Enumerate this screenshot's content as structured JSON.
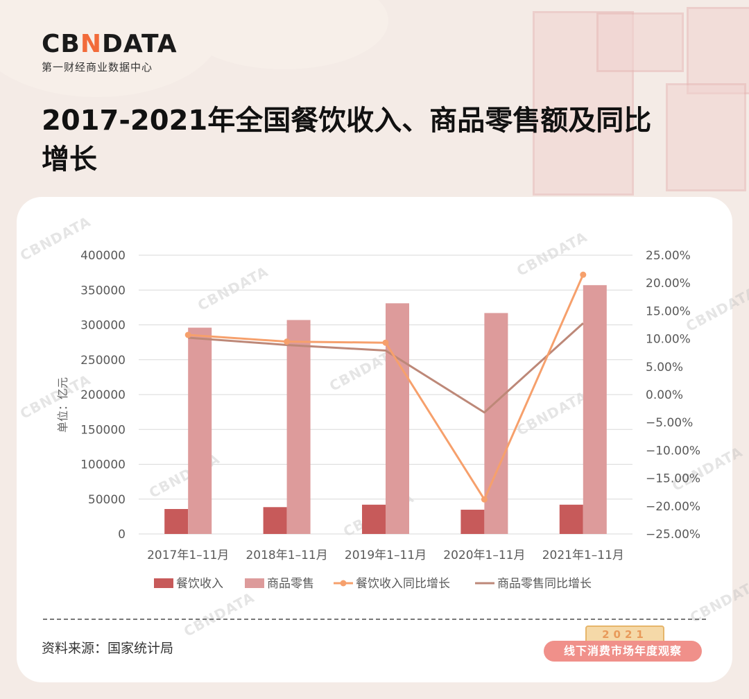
{
  "brand": {
    "logo_prefix": "CB",
    "logo_n": "N",
    "logo_suffix": "DATA",
    "subtitle": "第一财经商业数据中心"
  },
  "title": "2017-2021年全国餐饮收入、商品零售额及同比增长",
  "source": "资料来源：国家统计局",
  "stamp": {
    "year": "2021",
    "label": "线下消费市场年度观察"
  },
  "watermark_text": "CBNDATA",
  "chart_data": {
    "type": "bar",
    "categories": [
      "2017年1–11月",
      "2018年1–11月",
      "2019年1–11月",
      "2020年1–11月",
      "2021年1–11月"
    ],
    "ylabel": "单位：亿元",
    "ylim": [
      0,
      400000
    ],
    "y_ticks": [
      "0",
      "50000",
      "100000",
      "150000",
      "200000",
      "250000",
      "300000",
      "350000",
      "400000"
    ],
    "y2lim": [
      -0.25,
      0.25
    ],
    "y2_ticks": [
      "−25.00%",
      "−20.00%",
      "−15.00%",
      "−10.00%",
      "−5.00%",
      "0.00%",
      "5.00%",
      "10.00%",
      "15.00%",
      "20.00%",
      "25.00%"
    ],
    "grid": true,
    "legend_position": "bottom",
    "series": [
      {
        "name": "餐饮收入",
        "type": "bar",
        "axis": "left",
        "color": "#c75a5a",
        "values": [
          35800,
          38500,
          42000,
          34800,
          42000
        ]
      },
      {
        "name": "商品零售",
        "type": "bar",
        "axis": "left",
        "color": "#dd9b9b",
        "values": [
          296000,
          307000,
          331000,
          317000,
          357000
        ]
      },
      {
        "name": "餐饮收入同比增长",
        "type": "line",
        "axis": "right",
        "color": "#f6a06c",
        "marker": true,
        "values": [
          0.107,
          0.095,
          0.093,
          -0.188,
          0.215
        ]
      },
      {
        "name": "商品零售同比增长",
        "type": "line",
        "axis": "right",
        "color": "#bd8878",
        "marker": false,
        "values": [
          0.102,
          0.089,
          0.079,
          -0.032,
          0.128
        ]
      }
    ]
  }
}
